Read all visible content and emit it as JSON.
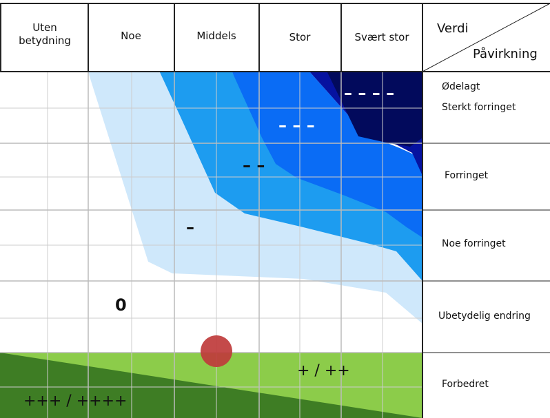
{
  "header": {
    "columns": [
      "Uten betydning",
      "Noe",
      "Middels",
      "Stor",
      "Svært stor"
    ],
    "corner_top": "Verdi",
    "corner_bottom": "Påvirkning"
  },
  "rows": {
    "sub_label": "Ødelagt",
    "labels": [
      "Sterkt forringet",
      "Forringet",
      "Noe forringet",
      "Ubetydelig endring",
      "Forbedret"
    ]
  },
  "symbols": {
    "zero": "0",
    "minus": "–",
    "double_minus": "– –",
    "triple_minus": "– – –",
    "quad_minus": "– – – –",
    "plus": "+ / ++",
    "triple_plus": "+++ / ++++"
  },
  "colors": {
    "very_light_blue": "#cfe8fb",
    "light_blue": "#1d9cf0",
    "blue": "#0a6cf5",
    "dark_blue": "#0612a0",
    "navy": "#020a5c",
    "light_green": "#8ccc4a",
    "dark_green": "#3e7d24",
    "marker": "#bf3b3b",
    "grid": "#cccccc",
    "border": "#222222"
  }
}
